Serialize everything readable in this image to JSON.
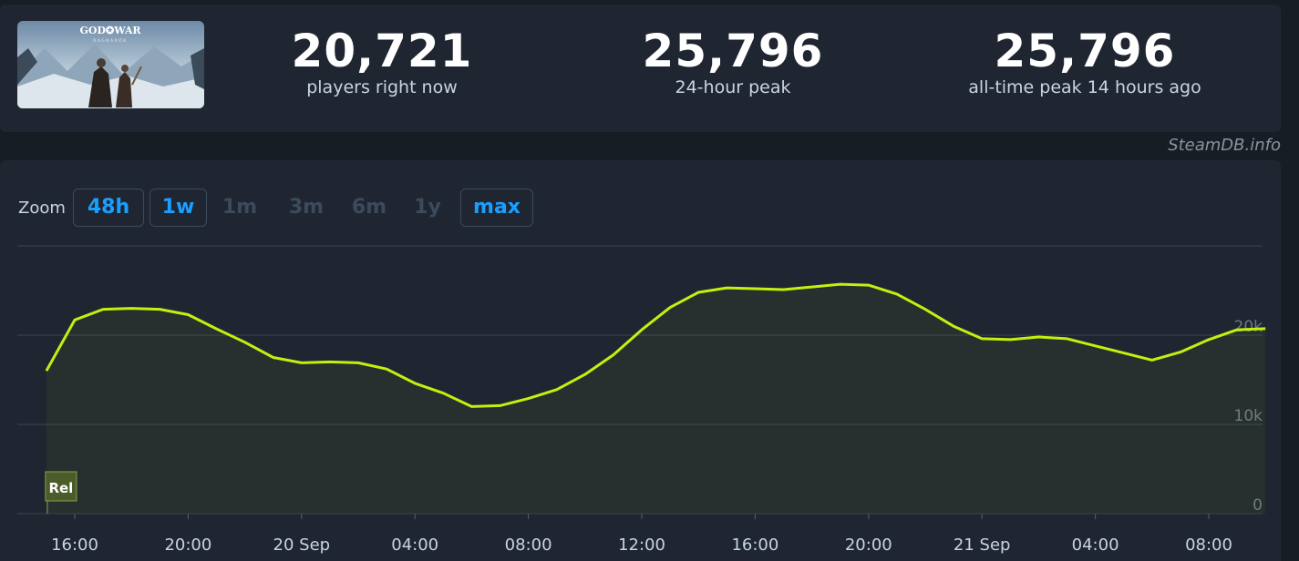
{
  "stats": {
    "current": {
      "value": "20,721",
      "label": "players right now"
    },
    "peak24h": {
      "value": "25,796",
      "label": "24-hour peak"
    },
    "alltime": {
      "value": "25,796",
      "label": "all-time peak 14 hours ago"
    }
  },
  "credit": "SteamDB.info",
  "zoom": {
    "label": "Zoom",
    "options": [
      {
        "label": "48h",
        "active": true
      },
      {
        "label": "1w",
        "active": true
      },
      {
        "label": "1m",
        "active": false
      },
      {
        "label": "3m",
        "active": false
      },
      {
        "label": "6m",
        "active": false
      },
      {
        "label": "1y",
        "active": false
      },
      {
        "label": "max",
        "active": true
      }
    ]
  },
  "colors": {
    "line": "#c3f00f",
    "grid": "#3a4450",
    "accent": "#1a9fff",
    "flag_bg": "#4c5b2a"
  },
  "chart_data": {
    "type": "area",
    "x_unit": "hour",
    "x": [
      15,
      16,
      17,
      18,
      19,
      20,
      21,
      22,
      23,
      24,
      25,
      26,
      27,
      28,
      29,
      30,
      31,
      32,
      33,
      34,
      35,
      36,
      37,
      38,
      39,
      40,
      41,
      42,
      43,
      44,
      45,
      46,
      47,
      48,
      49,
      50,
      51,
      52,
      53,
      54,
      55,
      56,
      57,
      58
    ],
    "series": [
      {
        "values": [
          16000,
          21700,
          22900,
          23000,
          22900,
          22300,
          20700,
          19200,
          17500,
          16900,
          17000,
          16900,
          16200,
          14600,
          13500,
          12000,
          12100,
          12900,
          13900,
          15600,
          17800,
          20600,
          23100,
          24800,
          25300,
          25200,
          25100,
          25400,
          25700,
          25600,
          24600,
          22900,
          21000,
          19600,
          19500,
          19800,
          19600,
          18800,
          18000,
          17200,
          18100,
          19500,
          20600,
          20721
        ]
      }
    ],
    "ylim": [
      0,
      30000
    ],
    "y_ticks": [
      {
        "v": 0,
        "label": "0"
      },
      {
        "v": 10000,
        "label": "10k"
      },
      {
        "v": 20000,
        "label": "20k"
      }
    ],
    "x_ticks": [
      {
        "h": 16,
        "label": "16:00"
      },
      {
        "h": 20,
        "label": "20:00"
      },
      {
        "h": 24,
        "label": "20 Sep"
      },
      {
        "h": 28,
        "label": "04:00"
      },
      {
        "h": 32,
        "label": "08:00"
      },
      {
        "h": 36,
        "label": "12:00"
      },
      {
        "h": 40,
        "label": "16:00"
      },
      {
        "h": 44,
        "label": "20:00"
      },
      {
        "h": 48,
        "label": "21 Sep"
      },
      {
        "h": 52,
        "label": "04:00"
      },
      {
        "h": 56,
        "label": "08:00"
      }
    ],
    "flag": {
      "label": "Rel",
      "h": 15
    },
    "grid": true
  }
}
